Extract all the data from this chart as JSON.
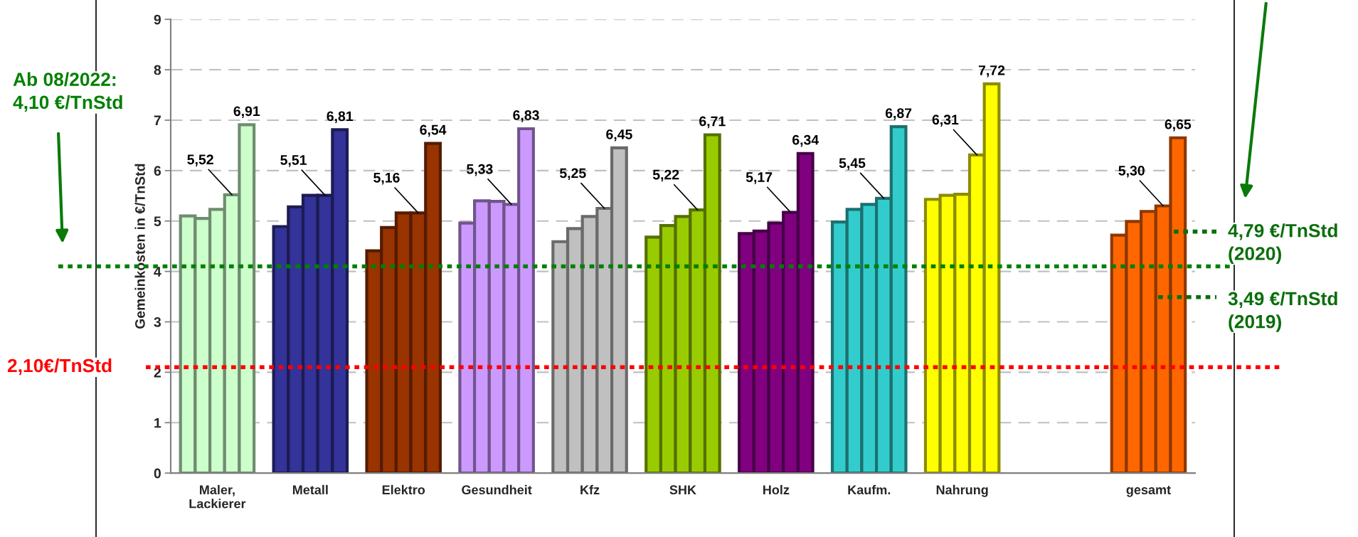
{
  "chart_data": {
    "type": "bar",
    "ylabel": "Gemeinkosten in €/TnStd",
    "categories": [
      "Maler,\nLackierer",
      "Metall",
      "Elektro",
      "Gesundheit",
      "Kfz",
      "SHK",
      "Holz",
      "Kaufm.",
      "Nahrung",
      null,
      "gesamt"
    ],
    "series": [
      {
        "colors": [
          "#ccffcc",
          "#333399",
          "#993300",
          "#cc99ff",
          "#c0c0c0",
          "#99cc00",
          "#800080",
          "#33cccc",
          "#ffff00",
          null,
          "#ff6600"
        ],
        "values": [
          5.1,
          4.89,
          4.41,
          4.96,
          4.59,
          4.68,
          4.75,
          4.98,
          5.43,
          null,
          4.72
        ]
      },
      {
        "colors": [
          "#ccffcc",
          "#333399",
          "#993300",
          "#cc99ff",
          "#c0c0c0",
          "#99cc00",
          "#800080",
          "#33cccc",
          "#ffff00",
          null,
          "#ff6600"
        ],
        "values": [
          5.05,
          5.28,
          4.87,
          5.4,
          4.85,
          4.91,
          4.8,
          5.23,
          5.51,
          null,
          4.99
        ]
      },
      {
        "colors": [
          "#ccffcc",
          "#333399",
          "#993300",
          "#cc99ff",
          "#c0c0c0",
          "#99cc00",
          "#800080",
          "#33cccc",
          "#ffff00",
          null,
          "#ff6600"
        ],
        "values": [
          5.23,
          5.51,
          5.16,
          5.39,
          5.09,
          5.09,
          4.96,
          5.33,
          5.53,
          null,
          5.19
        ]
      },
      {
        "colors": [
          "#ccffcc",
          "#333399",
          "#993300",
          "#cc99ff",
          "#c0c0c0",
          "#99cc00",
          "#800080",
          "#33cccc",
          "#ffff00",
          null,
          "#ff6600"
        ],
        "values": [
          5.52,
          5.51,
          5.16,
          5.33,
          5.25,
          5.22,
          5.17,
          5.45,
          6.31,
          null,
          5.3
        ],
        "value_labels": [
          "5,52",
          "5,51",
          "5,16",
          "5,33",
          "5,25",
          "5,22",
          "5,17",
          "5,45",
          "6,31",
          null,
          "5,30"
        ]
      },
      {
        "colors": [
          "#ccffcc",
          "#333399",
          "#993300",
          "#cc99ff",
          "#c0c0c0",
          "#99cc00",
          "#800080",
          "#33cccc",
          "#ffff00",
          null,
          "#ff6600"
        ],
        "values": [
          6.91,
          6.81,
          6.54,
          6.83,
          6.45,
          6.71,
          6.34,
          6.87,
          7.72,
          null,
          6.65
        ],
        "value_labels": [
          "6,91",
          "6,81",
          "6,54",
          "6,83",
          "6,45",
          "6,71",
          "6,34",
          "6,87",
          "7,72",
          null,
          "6,65"
        ]
      }
    ],
    "ylim": [
      0,
      9
    ],
    "yticks": [
      0,
      1,
      2,
      3,
      4,
      5,
      6,
      7,
      8,
      9
    ],
    "grid": "y",
    "legend": false,
    "ref_lines": [
      {
        "axis": "y",
        "value": 4.1,
        "label": "Ab 08/2022:\n4,10 €/TnStd",
        "color": "#008000",
        "line_style": "dotted"
      },
      {
        "axis": "y",
        "value": 2.1,
        "label": "2,10€/TnStd",
        "color": "#ff0000",
        "line_style": "dotted"
      },
      {
        "axis": "y",
        "value": 4.79,
        "label": "4,79 €/TnStd\n(2020)",
        "color": "#0a6e0a",
        "line_style": "dotted"
      },
      {
        "axis": "y",
        "value": 3.49,
        "label": "3,49 €/TnStd\n(2019)",
        "color": "#0a6e0a",
        "line_style": "dotted"
      }
    ]
  }
}
